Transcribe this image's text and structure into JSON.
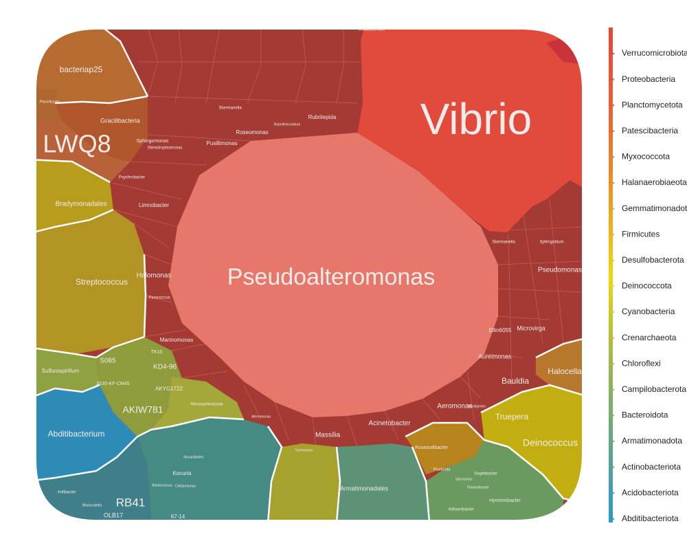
{
  "chart_data": {
    "type": "voronoi-treemap",
    "title": "",
    "legend": {
      "placement": "right",
      "orientation": "vertical-gradient",
      "entries": [
        {
          "label": "Verrucomicrobiota",
          "color": "#e2473b"
        },
        {
          "label": "Proteobacteria",
          "color": "#e2513a"
        },
        {
          "label": "Planctomycetota",
          "color": "#e05c38"
        },
        {
          "label": "Patescibacteria",
          "color": "#df6a35"
        },
        {
          "label": "Myxococcota",
          "color": "#e07a31"
        },
        {
          "label": "Halanaerobiaeota",
          "color": "#e38c2a"
        },
        {
          "label": "Gemmatimonadota",
          "color": "#e89e22"
        },
        {
          "label": "Firmicutes",
          "color": "#edb21b"
        },
        {
          "label": "Desulfobacterota",
          "color": "#f0c514"
        },
        {
          "label": "Deinococcota",
          "color": "#f0d60e"
        },
        {
          "label": "Cyanobacteria",
          "color": "#d6cb1f"
        },
        {
          "label": "Crenarchaeota",
          "color": "#bdc232"
        },
        {
          "label": "Chloroflexi",
          "color": "#a7bb45"
        },
        {
          "label": "Campilobacterota",
          "color": "#93b457"
        },
        {
          "label": "Bacteroidota",
          "color": "#7fae6a"
        },
        {
          "label": "Armatimonadota",
          "color": "#6aa87e"
        },
        {
          "label": "Actinobacteriota",
          "color": "#53a294"
        },
        {
          "label": "Acidobacteriota",
          "color": "#3d9cb0"
        },
        {
          "label": "Abditibacteriota",
          "color": "#2f97cc"
        }
      ]
    },
    "cells": [
      {
        "label": "Pseudoalteromonas",
        "phylum": "Proteobacteria",
        "color": "#e7766b",
        "size": "largest"
      },
      {
        "label": "Vibrio",
        "phylum": "Proteobacteria",
        "color": "#e24a3b",
        "size": "large"
      },
      {
        "label": "LWQ8",
        "phylum": "Planctomycetota",
        "color": "#b8623a"
      },
      {
        "label": "bacteriap25",
        "phylum": "Myxococcota",
        "color": "#b86b30"
      },
      {
        "label": "Gracilibacteria",
        "phylum": "Patescibacteria",
        "color": "#b0562d"
      },
      {
        "label": "Phaselicystis",
        "phylum": "Myxococcota",
        "color": "#b86b30"
      },
      {
        "label": "Bradymonadales",
        "phylum": "Desulfobacterota",
        "color": "#b89c1c"
      },
      {
        "label": "Streptococcus",
        "phylum": "Firmicutes",
        "color": "#b39323"
      },
      {
        "label": "Sulfurospirillum",
        "phylum": "Campilobacterota",
        "color": "#8fa142"
      },
      {
        "label": "Abditibacterium",
        "phylum": "Abditibacteriota",
        "color": "#2e8bb8"
      },
      {
        "label": "AKIW781",
        "phylum": "Chloroflexi",
        "color": "#8e9c3c"
      },
      {
        "label": "S085",
        "phylum": "Chloroflexi",
        "color": "#8e9c3c"
      },
      {
        "label": "KD4-96",
        "phylum": "Chloroflexi",
        "color": "#8e9c3c"
      },
      {
        "label": "JG30-KF-CM45",
        "phylum": "Chloroflexi",
        "color": "#8e9c3c"
      },
      {
        "label": "AKYG1722",
        "phylum": "Chloroflexi",
        "color": "#8e9c3c"
      },
      {
        "label": "TK10",
        "phylum": "Chloroflexi",
        "color": "#8e9c3c"
      },
      {
        "label": "Nitrosopheraceae",
        "phylum": "Crenarchaeota",
        "color": "#a4a83a"
      },
      {
        "label": "RB41",
        "phylum": "Acidobacteriota",
        "color": "#3f7f8a"
      },
      {
        "label": "OLB17",
        "phylum": "Acidobacteriota",
        "color": "#3f7f8a"
      },
      {
        "label": "Blastocatella",
        "phylum": "Acidobacteriota",
        "color": "#3f7f8a"
      },
      {
        "label": "Arilibacter",
        "phylum": "Acidobacteriota",
        "color": "#3f7f8a"
      },
      {
        "label": "Kocuria",
        "phylum": "Actinobacteriota",
        "color": "#468a84"
      },
      {
        "label": "Nocardioides",
        "phylum": "Actinobacteriota",
        "color": "#468a84"
      },
      {
        "label": "Cellulomonas",
        "phylum": "Actinobacteriota",
        "color": "#468a84"
      },
      {
        "label": "Blastococcus",
        "phylum": "Actinobacteriota",
        "color": "#468a84"
      },
      {
        "label": "67-14",
        "phylum": "Actinobacteriota",
        "color": "#468a84"
      },
      {
        "label": "Armatimonadales",
        "phylum": "Armatimonadota",
        "color": "#5c9276"
      },
      {
        "label": "Alteromonas",
        "phylum": "Proteobacteria",
        "color": "#a33a33"
      },
      {
        "label": "Massilia",
        "phylum": "Proteobacteria",
        "color": "#a33a33"
      },
      {
        "label": "Acinetobacter",
        "phylum": "Proteobacteria",
        "color": "#a33a33"
      },
      {
        "label": "Aeromonas",
        "phylum": "Proteobacteria",
        "color": "#a33a33"
      },
      {
        "label": "Alcaligenes",
        "phylum": "Proteobacteria",
        "color": "#a33a33"
      },
      {
        "label": "Bauldia",
        "phylum": "Proteobacteria",
        "color": "#a33a33"
      },
      {
        "label": "Aureimonas",
        "phylum": "Proteobacteria",
        "color": "#a33a33"
      },
      {
        "label": "Ellin6055",
        "phylum": "Proteobacteria",
        "color": "#a33a33"
      },
      {
        "label": "Microvirga",
        "phylum": "Proteobacteria",
        "color": "#a33a33"
      },
      {
        "label": "Pseudomonas",
        "phylum": "Proteobacteria",
        "color": "#a33a33"
      },
      {
        "label": "Skermanella",
        "phylum": "Proteobacteria",
        "color": "#a33a33"
      },
      {
        "label": "Sphingobium",
        "phylum": "Proteobacteria",
        "color": "#a33a33"
      },
      {
        "label": "Marinomonas",
        "phylum": "Proteobacteria",
        "color": "#a33a33"
      },
      {
        "label": "Halomonas",
        "phylum": "Proteobacteria",
        "color": "#a33a33"
      },
      {
        "label": "Paracoccus",
        "phylum": "Proteobacteria",
        "color": "#a33a33"
      },
      {
        "label": "Limnobacter",
        "phylum": "Proteobacteria",
        "color": "#a33a33"
      },
      {
        "label": "Psychrobacter",
        "phylum": "Proteobacteria",
        "color": "#a33a33"
      },
      {
        "label": "Sphingomonas",
        "phylum": "Proteobacteria",
        "color": "#a33a33"
      },
      {
        "label": "Stenotrophomonas",
        "phylum": "Proteobacteria",
        "color": "#a33a33"
      },
      {
        "label": "Pusillimonas",
        "phylum": "Proteobacteria",
        "color": "#a33a33"
      },
      {
        "label": "Roseomonas",
        "phylum": "Proteobacteria",
        "color": "#a33a33"
      },
      {
        "label": "Rubritepida",
        "phylum": "Proteobacteria",
        "color": "#a33a33"
      },
      {
        "label": "Rubellimicrobium",
        "phylum": "Proteobacteria",
        "color": "#a33a33"
      },
      {
        "label": "Skermanella",
        "phylum": "Proteobacteria",
        "color": "#a33a33"
      },
      {
        "label": "Undibacterium",
        "phylum": "Proteobacteria",
        "color": "#a33a33"
      },
      {
        "label": "Halocella",
        "phylum": "Halanaerobiaeota",
        "color": "#b7772c"
      },
      {
        "label": "Truepera",
        "phylum": "Deinococcota",
        "color": "#c3ae12"
      },
      {
        "label": "Deinococcus",
        "phylum": "Deinococcota",
        "color": "#c3ae12"
      },
      {
        "label": "Roseisolibacter",
        "phylum": "Gemmatimonadota",
        "color": "#b6831d"
      },
      {
        "label": "Hymenobacter",
        "phylum": "Bacteroidota",
        "color": "#6a9a60"
      },
      {
        "label": "Adhaeribacter",
        "phylum": "Bacteroidota",
        "color": "#6a9a60"
      },
      {
        "label": "Segetibacter",
        "phylum": "Bacteroidota",
        "color": "#6a9a60"
      },
      {
        "label": "Flavisolibacter",
        "phylum": "Bacteroidota",
        "color": "#6a9a60"
      },
      {
        "label": "Fluviicola",
        "phylum": "Bacteroidota",
        "color": "#6a9a60"
      },
      {
        "label": "Spirosoma",
        "phylum": "Bacteroidota",
        "color": "#6a9a60"
      },
      {
        "label": "Tychonema",
        "phylum": "Cyanobacteria",
        "color": "#a7a12d"
      }
    ]
  }
}
